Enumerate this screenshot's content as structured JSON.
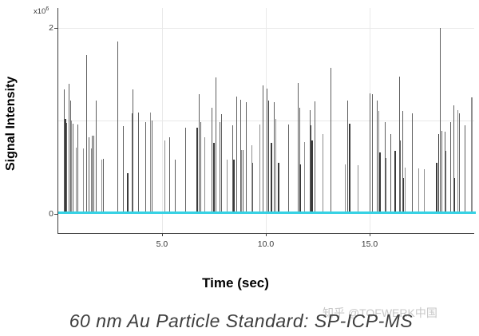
{
  "chart": {
    "y_axis": {
      "exponent_base": "x10",
      "exponent_sup": "6",
      "title": "Signal Intensity"
    },
    "x_axis": {
      "title": "Time (sec)"
    }
  },
  "caption": "60 nm Au Particle Standard: SP-ICP-MS",
  "watermark": "知乎 @TOFWERK中国",
  "chart_data": {
    "type": "bar",
    "subtype": "spike-train",
    "title": "",
    "xlabel": "Time (sec)",
    "ylabel": "Signal Intensity",
    "xlim": [
      0,
      20.04
    ],
    "ylim": [
      0,
      2214000
    ],
    "intensity_scale": 1000000,
    "grid": true,
    "grid_x_values": [
      5,
      10,
      15
    ],
    "grid_y_values": [
      1000000,
      2000000
    ],
    "xticks": [
      {
        "value": 5,
        "label": "5.0"
      },
      {
        "value": 10,
        "label": "10.0"
      },
      {
        "value": 15,
        "label": "15.0"
      }
    ],
    "yticks": [
      {
        "value": 0,
        "label": "0"
      },
      {
        "value": 2000000,
        "label": "2"
      }
    ],
    "baseline_value": 0,
    "baseline_color": "#36d2e4",
    "spike_colors": [
      "#3a3a3a",
      "#5f5f5f",
      "#8e8e8e"
    ],
    "spike_format": "[time_sec, intensity_x1e6, width_px, color_index]",
    "spikes": [
      [
        0.27,
        1.34,
        1,
        1
      ],
      [
        0.33,
        1.02,
        2,
        0
      ],
      [
        0.42,
        0.98,
        1,
        1
      ],
      [
        0.52,
        1.4,
        1,
        1
      ],
      [
        0.6,
        1.22,
        1,
        1
      ],
      [
        0.65,
        1.0,
        1,
        2
      ],
      [
        0.73,
        0.97,
        1,
        1
      ],
      [
        0.88,
        0.71,
        1,
        2
      ],
      [
        0.96,
        0.96,
        1,
        1
      ],
      [
        1.23,
        0.7,
        1,
        2
      ],
      [
        1.38,
        1.71,
        1,
        1
      ],
      [
        1.5,
        0.82,
        1,
        1
      ],
      [
        1.58,
        0.7,
        1,
        2
      ],
      [
        1.65,
        0.84,
        1,
        1
      ],
      [
        1.73,
        0.84,
        1,
        1
      ],
      [
        1.81,
        1.22,
        1,
        1
      ],
      [
        2.08,
        0.58,
        1,
        2
      ],
      [
        2.19,
        0.59,
        1,
        1
      ],
      [
        2.88,
        1.85,
        1,
        1
      ],
      [
        3.15,
        0.94,
        1,
        1
      ],
      [
        3.35,
        0.44,
        2,
        0
      ],
      [
        3.54,
        1.08,
        1,
        1
      ],
      [
        3.6,
        1.34,
        1,
        1
      ],
      [
        3.88,
        1.09,
        1,
        1
      ],
      [
        4.23,
        0.99,
        1,
        1
      ],
      [
        4.46,
        1.09,
        1,
        2
      ],
      [
        4.52,
        1.0,
        1,
        1
      ],
      [
        5.15,
        0.79,
        1,
        2
      ],
      [
        5.38,
        0.82,
        1,
        1
      ],
      [
        5.62,
        0.58,
        1,
        1
      ],
      [
        6.15,
        0.93,
        1,
        1
      ],
      [
        6.69,
        0.93,
        2,
        0
      ],
      [
        6.77,
        1.29,
        1,
        1
      ],
      [
        6.85,
        0.99,
        1,
        1
      ],
      [
        7.04,
        0.82,
        1,
        2
      ],
      [
        7.42,
        1.14,
        1,
        1
      ],
      [
        7.5,
        0.76,
        2,
        0
      ],
      [
        7.58,
        1.47,
        1,
        1
      ],
      [
        7.77,
        0.99,
        1,
        1
      ],
      [
        7.88,
        1.07,
        1,
        1
      ],
      [
        8.15,
        0.58,
        1,
        2
      ],
      [
        8.42,
        0.95,
        1,
        1
      ],
      [
        8.48,
        0.58,
        2,
        0
      ],
      [
        8.58,
        1.26,
        1,
        1
      ],
      [
        8.77,
        1.23,
        1,
        1
      ],
      [
        8.83,
        0.69,
        1,
        2
      ],
      [
        8.92,
        0.69,
        1,
        1
      ],
      [
        9.04,
        1.2,
        1,
        1
      ],
      [
        9.31,
        0.74,
        1,
        2
      ],
      [
        9.38,
        0.55,
        1,
        1
      ],
      [
        9.73,
        0.96,
        1,
        2
      ],
      [
        9.87,
        1.38,
        1,
        1
      ],
      [
        10.06,
        1.35,
        1,
        1
      ],
      [
        10.13,
        1.22,
        1,
        0
      ],
      [
        10.27,
        0.76,
        2,
        0
      ],
      [
        10.42,
        1.2,
        1,
        1
      ],
      [
        10.5,
        1.02,
        1,
        2
      ],
      [
        10.63,
        0.55,
        2,
        0
      ],
      [
        11.08,
        0.96,
        1,
        1
      ],
      [
        11.56,
        1.41,
        1,
        1
      ],
      [
        11.62,
        1.14,
        1,
        1
      ],
      [
        11.65,
        0.53,
        2,
        0
      ],
      [
        11.85,
        0.77,
        1,
        2
      ],
      [
        12.13,
        1.12,
        1,
        1
      ],
      [
        12.19,
        0.95,
        1,
        0
      ],
      [
        12.23,
        0.79,
        2,
        0
      ],
      [
        12.38,
        1.21,
        1,
        1
      ],
      [
        12.77,
        0.86,
        1,
        2
      ],
      [
        13.15,
        1.57,
        1,
        1
      ],
      [
        13.83,
        0.53,
        1,
        2
      ],
      [
        13.96,
        1.22,
        1,
        1
      ],
      [
        14.04,
        0.97,
        2,
        0
      ],
      [
        14.44,
        0.52,
        1,
        2
      ],
      [
        15.02,
        1.3,
        1,
        1
      ],
      [
        15.12,
        1.29,
        1,
        1
      ],
      [
        15.38,
        1.22,
        1,
        1
      ],
      [
        15.44,
        1.11,
        1,
        2
      ],
      [
        15.52,
        0.66,
        2,
        0
      ],
      [
        15.75,
        0.99,
        1,
        1
      ],
      [
        15.79,
        0.6,
        1,
        1
      ],
      [
        16.02,
        0.86,
        1,
        1
      ],
      [
        16.25,
        0.68,
        2,
        0
      ],
      [
        16.44,
        1.48,
        1,
        1
      ],
      [
        16.5,
        0.79,
        1,
        1
      ],
      [
        16.6,
        1.11,
        1,
        1
      ],
      [
        16.65,
        0.39,
        1,
        0
      ],
      [
        16.73,
        0.5,
        1,
        2
      ],
      [
        17.04,
        1.08,
        1,
        1
      ],
      [
        17.38,
        0.49,
        1,
        2
      ],
      [
        17.62,
        0.48,
        1,
        2
      ],
      [
        18.23,
        0.55,
        2,
        0
      ],
      [
        18.31,
        0.86,
        1,
        0
      ],
      [
        18.42,
        2.0,
        1,
        1
      ],
      [
        18.5,
        0.89,
        1,
        1
      ],
      [
        18.62,
        0.88,
        1,
        1
      ],
      [
        18.69,
        0.68,
        1,
        1
      ],
      [
        18.9,
        0.99,
        1,
        1
      ],
      [
        19.06,
        1.17,
        1,
        1
      ],
      [
        19.1,
        0.39,
        1,
        0
      ],
      [
        19.27,
        1.12,
        1,
        2
      ],
      [
        19.33,
        1.08,
        1,
        1
      ],
      [
        19.58,
        0.95,
        1,
        1
      ],
      [
        19.92,
        1.25,
        2,
        2
      ]
    ]
  }
}
